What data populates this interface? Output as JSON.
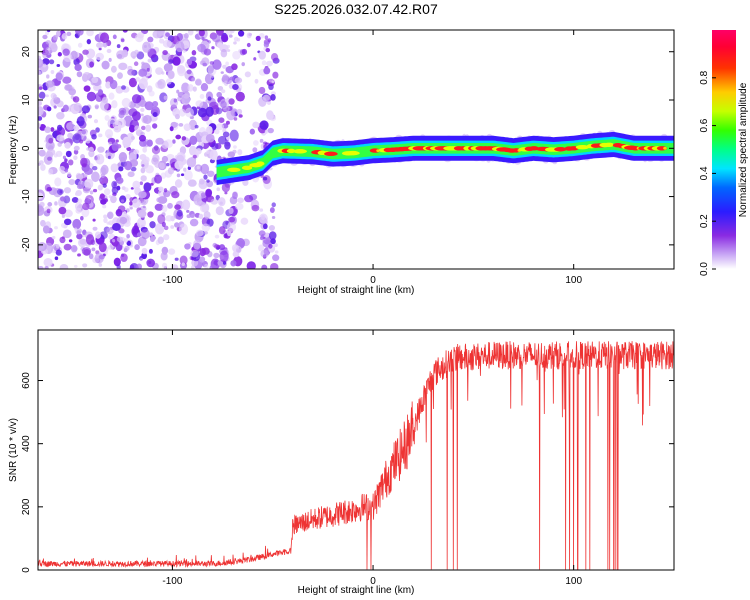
{
  "title": "S225.2026.032.07.42.R07",
  "chart_data": [
    {
      "type": "heatmap",
      "xlabel": "Height of straight line (km)",
      "ylabel": "Frequency (Hz)",
      "xlim": [
        -167,
        150
      ],
      "ylim": [
        -25,
        24.5
      ],
      "x_ticks": [
        "-100",
        "0",
        "100"
      ],
      "y_ticks": [
        "-20",
        "-10",
        "0",
        "10",
        "20"
      ],
      "colorbar": {
        "label": "Normalized spectral amplitude",
        "range": [
          0,
          1
        ],
        "ticks": [
          "0.0",
          "0.2",
          "0.4",
          "0.6",
          "0.8"
        ]
      },
      "ridge": {
        "x": [
          -78,
          -70,
          -62,
          -55,
          -50,
          -45,
          -30,
          -20,
          -10,
          0,
          10,
          20,
          40,
          60,
          70,
          80,
          90,
          100,
          110,
          120,
          130,
          150
        ],
        "y": [
          -5,
          -4.5,
          -4,
          -3,
          -1,
          -0.5,
          -0.7,
          -1.2,
          -1,
          -0.5,
          -0.3,
          0,
          0,
          0,
          -0.5,
          0,
          -0.3,
          0,
          0.5,
          0.8,
          0,
          0
        ]
      },
      "noise_region_x": [
        -167,
        -48
      ]
    },
    {
      "type": "line",
      "xlabel": "Height of straight line (km)",
      "ylabel": "SNR (10 * v/v)",
      "xlim": [
        -167,
        150
      ],
      "ylim": [
        0,
        760
      ],
      "x_ticks": [
        "-100",
        "0",
        "100"
      ],
      "y_ticks": [
        "0",
        "200",
        "400",
        "600"
      ],
      "series_color": "#ee3333",
      "envelope": {
        "x": [
          -167,
          -80,
          -70,
          -60,
          -50,
          -41,
          -40,
          -30,
          -20,
          -10,
          -5,
          0,
          5,
          10,
          15,
          20,
          25,
          30,
          40,
          60,
          80,
          100,
          120,
          150
        ],
        "y": [
          20,
          20,
          25,
          35,
          50,
          60,
          140,
          160,
          175,
          190,
          200,
          200,
          270,
          330,
          380,
          450,
          540,
          620,
          670,
          680,
          680,
          680,
          680,
          680
        ]
      },
      "dropouts_x": [
        -3,
        -1,
        29,
        37,
        40,
        42,
        83,
        96,
        98,
        100,
        102,
        106,
        108,
        117,
        118,
        120,
        121,
        122
      ]
    }
  ]
}
